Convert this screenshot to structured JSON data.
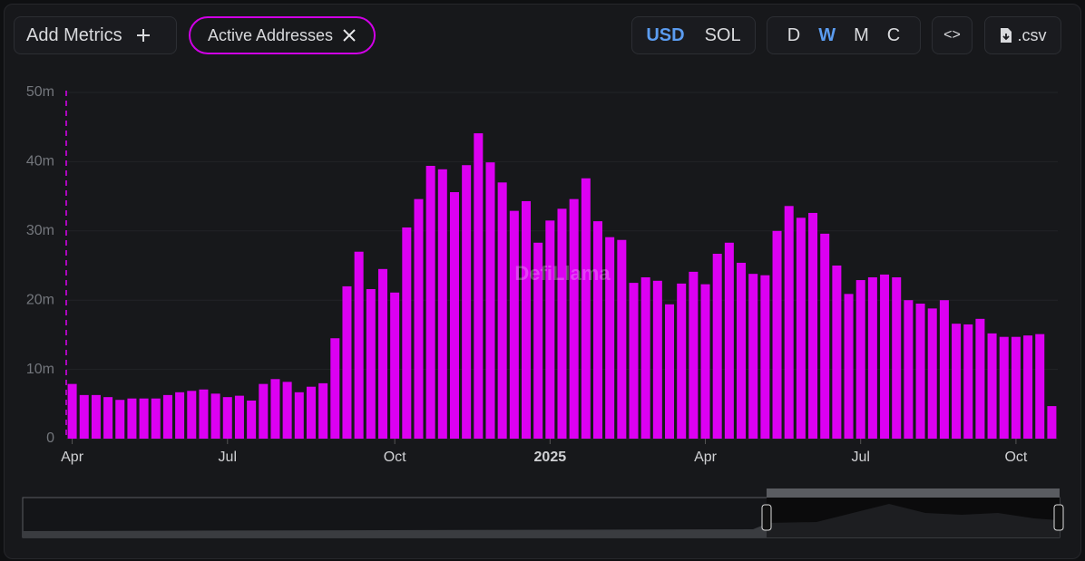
{
  "ui": {
    "add_metrics": "Add Metrics",
    "metric_chip": "Active Addresses",
    "currency": [
      "USD",
      "SOL"
    ],
    "periods": [
      "D",
      "W",
      "M",
      "C"
    ],
    "embed": "<>",
    "csv": ".csv",
    "watermark": "DefiLlama"
  },
  "chart_data": {
    "type": "bar",
    "color": "#dc00f2",
    "grid": true,
    "categories": [
      "Apr",
      null,
      null,
      null,
      null,
      null,
      null,
      null,
      null,
      null,
      null,
      null,
      null,
      "Jul",
      null,
      null,
      null,
      null,
      null,
      null,
      null,
      null,
      null,
      null,
      null,
      null,
      null,
      "Oct",
      null,
      null,
      null,
      null,
      null,
      null,
      null,
      null,
      null,
      null,
      null,
      null,
      "2025",
      null,
      null,
      null,
      null,
      null,
      null,
      null,
      null,
      null,
      null,
      null,
      null,
      "Apr",
      null,
      null,
      null,
      null,
      null,
      null,
      null,
      null,
      null,
      null,
      null,
      null,
      "Jul",
      null,
      null,
      null,
      null,
      null,
      null,
      null,
      null,
      null,
      null,
      null,
      null,
      "Oct",
      null,
      null,
      null
    ],
    "values": [
      7900000,
      6300000,
      6300000,
      6000000,
      5600000,
      5800000,
      5800000,
      5800000,
      6300000,
      6700000,
      6900000,
      7100000,
      6500000,
      6000000,
      6200000,
      5500000,
      7900000,
      8600000,
      8200000,
      6700000,
      7500000,
      8000000,
      14500000,
      22000000,
      27000000,
      21600000,
      24500000,
      21100000,
      30500000,
      34600000,
      39400000,
      38900000,
      35600000,
      39500000,
      44100000,
      39900000,
      37000000,
      32900000,
      34300000,
      28300000,
      31500000,
      33200000,
      34600000,
      37600000,
      31400000,
      29100000,
      28700000,
      22500000,
      23300000,
      22800000,
      19400000,
      22400000,
      24100000,
      22300000,
      26700000,
      28300000,
      25400000,
      23800000,
      23600000,
      30000000,
      33600000,
      31900000,
      32600000,
      29600000,
      25000000,
      20900000,
      22900000,
      23300000,
      23700000,
      23300000,
      20000000,
      19500000,
      18800000,
      20000000,
      16600000,
      16500000,
      17300000,
      15200000,
      14700000,
      14700000,
      14900000,
      15100000,
      4700000
    ],
    "ylim": [
      0,
      50000000
    ],
    "yticks": [
      0,
      {
        "value": 10000000,
        "label": "10m"
      },
      {
        "value": 20000000,
        "label": "20m"
      },
      {
        "value": 30000000,
        "label": "30m"
      },
      {
        "value": 40000000,
        "label": "40m"
      },
      {
        "value": 50000000,
        "label": "50m"
      }
    ]
  }
}
